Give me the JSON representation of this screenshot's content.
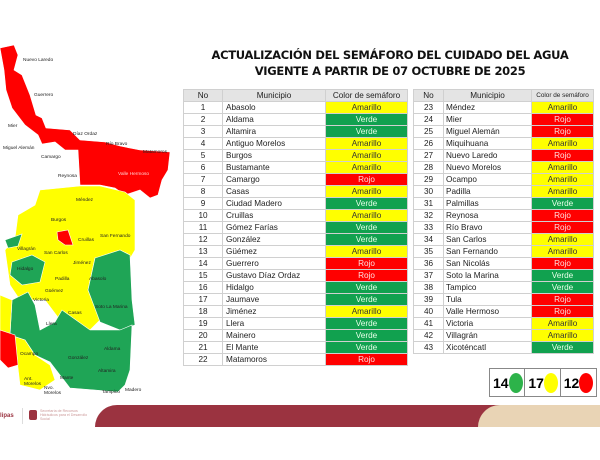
{
  "title": {
    "line1": "ACTUALIZACIÓN DEL SEMÁFORO DEL CUIDADO DEL AGUA",
    "line2": "VIGENTE A PARTIR DE 07 OCTUBRE DE 2025"
  },
  "headers": {
    "no": "No",
    "municipio": "Municipio",
    "color": "Color de semáforo"
  },
  "table_left": [
    {
      "no": "1",
      "name": "Abasolo",
      "color": "Amarillo"
    },
    {
      "no": "2",
      "name": "Aldama",
      "color": "Verde"
    },
    {
      "no": "3",
      "name": "Altamira",
      "color": "Verde"
    },
    {
      "no": "4",
      "name": "Antiguo Morelos",
      "color": "Amarillo"
    },
    {
      "no": "5",
      "name": "Burgos",
      "color": "Amarillo"
    },
    {
      "no": "6",
      "name": "Bustamante",
      "color": "Amarillo"
    },
    {
      "no": "7",
      "name": "Camargo",
      "color": "Rojo"
    },
    {
      "no": "8",
      "name": "Casas",
      "color": "Amarillo"
    },
    {
      "no": "9",
      "name": "Ciudad Madero",
      "color": "Verde"
    },
    {
      "no": "10",
      "name": "Cruillas",
      "color": "Amarillo"
    },
    {
      "no": "11",
      "name": "Gómez Farías",
      "color": "Verde"
    },
    {
      "no": "12",
      "name": "González",
      "color": "Verde"
    },
    {
      "no": "13",
      "name": "Güémez",
      "color": "Amarillo"
    },
    {
      "no": "14",
      "name": "Guerrero",
      "color": "Rojo"
    },
    {
      "no": "15",
      "name": "Gustavo Díaz Ordaz",
      "color": "Rojo"
    },
    {
      "no": "16",
      "name": "Hidalgo",
      "color": "Verde"
    },
    {
      "no": "17",
      "name": "Jaumave",
      "color": "Verde"
    },
    {
      "no": "18",
      "name": "Jiménez",
      "color": "Amarillo"
    },
    {
      "no": "19",
      "name": "Llera",
      "color": "Verde"
    },
    {
      "no": "20",
      "name": "Mainero",
      "color": "Verde"
    },
    {
      "no": "21",
      "name": "El Mante",
      "color": "Verde"
    },
    {
      "no": "22",
      "name": "Matamoros",
      "color": "Rojo"
    }
  ],
  "table_right": [
    {
      "no": "23",
      "name": "Méndez",
      "color": "Amarillo"
    },
    {
      "no": "24",
      "name": "Mier",
      "color": "Rojo"
    },
    {
      "no": "25",
      "name": "Miguel Alemán",
      "color": "Rojo"
    },
    {
      "no": "26",
      "name": "Miquihuana",
      "color": "Amarillo"
    },
    {
      "no": "27",
      "name": "Nuevo Laredo",
      "color": "Rojo"
    },
    {
      "no": "28",
      "name": "Nuevo Morelos",
      "color": "Amarillo"
    },
    {
      "no": "29",
      "name": "Ocampo",
      "color": "Amarillo"
    },
    {
      "no": "30",
      "name": "Padilla",
      "color": "Amarillo"
    },
    {
      "no": "31",
      "name": "Palmillas",
      "color": "Verde"
    },
    {
      "no": "32",
      "name": "Reynosa",
      "color": "Rojo"
    },
    {
      "no": "33",
      "name": "Río Bravo",
      "color": "Rojo"
    },
    {
      "no": "34",
      "name": "San Carlos",
      "color": "Amarillo"
    },
    {
      "no": "35",
      "name": "San Fernando",
      "color": "Amarillo"
    },
    {
      "no": "36",
      "name": "San Nicolás",
      "color": "Rojo"
    },
    {
      "no": "37",
      "name": "Soto la Marina",
      "color": "Verde"
    },
    {
      "no": "38",
      "name": "Tampico",
      "color": "Verde"
    },
    {
      "no": "39",
      "name": "Tula",
      "color": "Rojo"
    },
    {
      "no": "40",
      "name": "Valle Hermoso",
      "color": "Rojo"
    },
    {
      "no": "41",
      "name": "Victoria",
      "color": "Amarillo"
    },
    {
      "no": "42",
      "name": "Villagrán",
      "color": "Amarillo"
    },
    {
      "no": "43",
      "name": "Xicoténcatl",
      "color": "Verde"
    }
  ],
  "legend": [
    {
      "count": "14",
      "color": "#2db34a"
    },
    {
      "count": "17",
      "color": "#ffff00"
    },
    {
      "count": "12",
      "color": "#ff0000"
    }
  ],
  "colors": {
    "Amarillo": "#ffff00",
    "Verde": "#11a14f",
    "Rojo": "#ff0000",
    "brand": "#9b3340"
  },
  "map": {
    "labels": [
      "Nuevo Laredo",
      "Guerrero",
      "Mier",
      "Miguel Alemán",
      "Camargo",
      "Díaz Ordaz",
      "Río Bravo",
      "Matamoros",
      "Reynosa",
      "Valle Hermoso",
      "Méndez",
      "Burgos",
      "Cruillas",
      "San Fernando",
      "Villagrán",
      "San Carlos",
      "Hidalgo",
      "Jiménez",
      "Padilla",
      "Abasolo",
      "Güémez",
      "Victoria",
      "Soto La Marina",
      "Casas",
      "Llera",
      "Ocampo",
      "Aldama",
      "González",
      "Altamira",
      "Mante",
      "Ant. Morelos",
      "Nvo. Morelos",
      "Tampico",
      "Madero"
    ]
  },
  "footer": {
    "logo_text": "lipas",
    "agency": "Secretaría de Recursos Hidráulicos para el Desarrollo Social"
  }
}
